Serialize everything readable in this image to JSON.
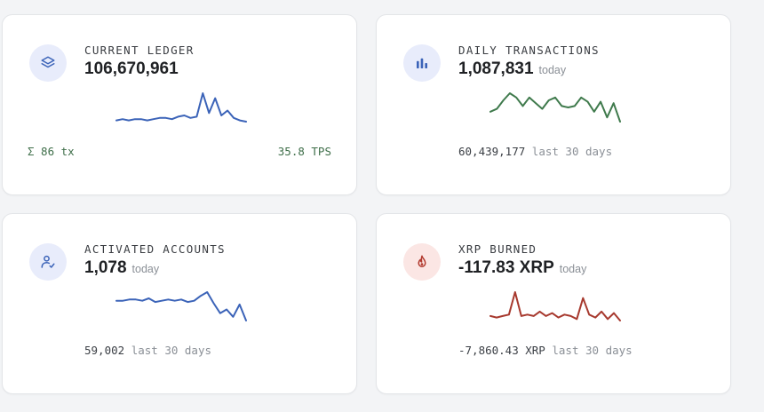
{
  "cards": {
    "ledger": {
      "label": "CURRENT LEDGER",
      "value": "106,670,961",
      "icon": "layers-icon",
      "footer_left": "Σ 86 tx",
      "footer_right": "35.8 TPS",
      "sparkline": [
        8,
        9,
        8,
        9,
        9,
        8,
        9,
        10,
        10,
        9,
        11,
        12,
        10,
        11,
        30,
        14,
        26,
        12,
        16,
        10,
        8,
        7
      ],
      "color": "#3b63b8"
    },
    "transactions": {
      "label": "DAILY TRANSACTIONS",
      "value": "1,087,831",
      "suffix": "today",
      "icon": "bar-chart-icon",
      "footer_value": "60,439,177",
      "footer_suffix": "last 30 days",
      "sparkline": [
        12,
        14,
        20,
        25,
        22,
        16,
        22,
        18,
        14,
        20,
        22,
        16,
        15,
        16,
        22,
        19,
        12,
        19,
        8,
        18,
        5
      ],
      "color": "#3f7a4c"
    },
    "accounts": {
      "label": "ACTIVATED ACCOUNTS",
      "value": "1,078",
      "suffix": "today",
      "icon": "user-check-icon",
      "footer_value": "59,002",
      "footer_suffix": "last 30 days",
      "sparkline": [
        18,
        18,
        19,
        19,
        18,
        20,
        17,
        18,
        19,
        18,
        19,
        17,
        18,
        22,
        25,
        16,
        8,
        11,
        5,
        15,
        2
      ],
      "color": "#3b63b8"
    },
    "burned": {
      "label": "XRP BURNED",
      "value": "-117.83 XRP",
      "suffix": "today",
      "icon": "flame-icon",
      "footer_value": "-7,860.43 XRP",
      "footer_suffix": "last 30 days",
      "sparkline": [
        8,
        7,
        8,
        9,
        24,
        8,
        9,
        8,
        11,
        8,
        10,
        7,
        9,
        8,
        6,
        20,
        9,
        7,
        11,
        6,
        10,
        5
      ],
      "color": "#a7392e"
    }
  }
}
